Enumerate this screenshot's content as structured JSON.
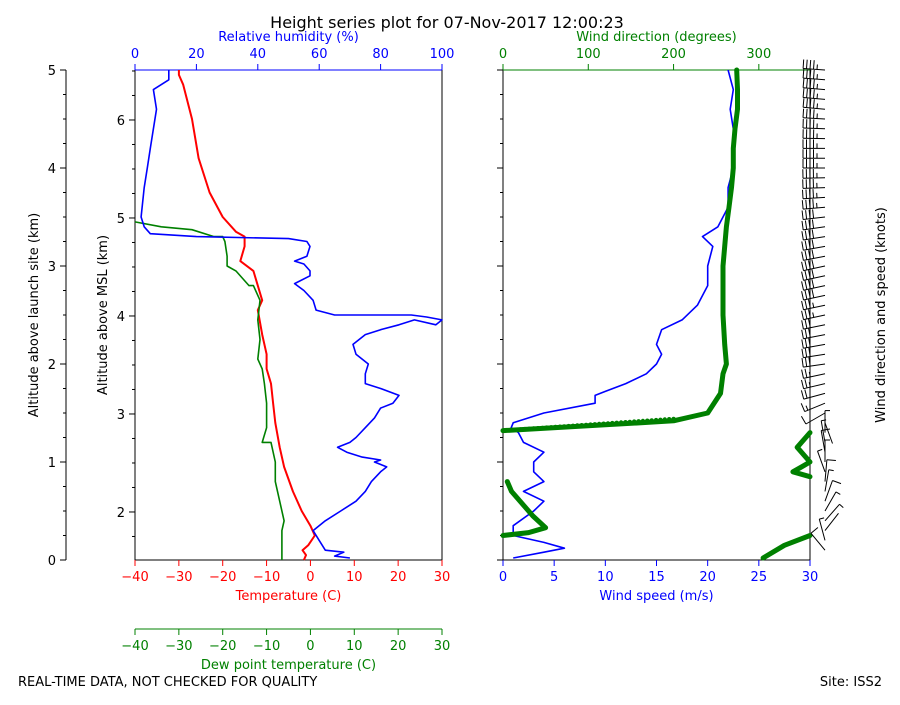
{
  "title": "Height series plot for 07-Nov-2017 12:00:23",
  "footer_left": "REAL-TIME DATA, NOT CHECKED FOR QUALITY",
  "footer_right": "Site: ISS2",
  "colors": {
    "temperature": "#ff0000",
    "dewpoint": "#008000",
    "rh": "#0000ff",
    "wind_speed": "#0000ff",
    "wind_dir": "#008000",
    "barbs": "#000000"
  },
  "chart_data": [
    {
      "type": "line",
      "name": "thermodynamic",
      "axes": {
        "left_outer": {
          "label": "Altitude above launch site (km)",
          "ylim": [
            0,
            5
          ],
          "ticks": [
            0,
            1,
            2,
            3,
            4,
            5
          ]
        },
        "left_inner": {
          "label": "Altitude above MSL (km)",
          "ylim": [
            1.51,
            6.51
          ],
          "ticks": [
            2,
            3,
            4,
            5,
            6
          ]
        },
        "bottom": {
          "label": "Temperature (C)",
          "xlim": [
            -40,
            30
          ],
          "ticks": [
            -40,
            -30,
            -20,
            -10,
            0,
            10,
            20,
            30
          ]
        },
        "bottom2": {
          "label": "Dew point temperature (C)",
          "xlim": [
            -40,
            30
          ],
          "ticks": [
            -40,
            -30,
            -20,
            -10,
            0,
            10,
            20,
            30
          ]
        },
        "top": {
          "label": "Relative humidity (%)",
          "xlim": [
            0,
            100
          ],
          "ticks": [
            0,
            20,
            40,
            60,
            80,
            100
          ]
        }
      },
      "series": [
        {
          "name": "Temperature",
          "axis": "bottom",
          "color": "#ff0000",
          "points": [
            [
              -1.5,
              0
            ],
            [
              -1,
              0.05
            ],
            [
              -1.8,
              0.1
            ],
            [
              -0.5,
              0.15
            ],
            [
              1,
              0.25
            ],
            [
              0,
              0.35
            ],
            [
              -2,
              0.5
            ],
            [
              -4,
              0.7
            ],
            [
              -6,
              0.95
            ],
            [
              -7,
              1.15
            ],
            [
              -8,
              1.4
            ],
            [
              -8.5,
              1.6
            ],
            [
              -9,
              1.8
            ],
            [
              -10,
              1.95
            ],
            [
              -10,
              2.1
            ],
            [
              -11,
              2.3
            ],
            [
              -12,
              2.55
            ],
            [
              -11,
              2.65
            ],
            [
              -13,
              2.95
            ],
            [
              -16,
              3.05
            ],
            [
              -15,
              3.2
            ],
            [
              -15,
              3.3
            ],
            [
              -17,
              3.35
            ],
            [
              -20,
              3.5
            ],
            [
              -23,
              3.75
            ],
            [
              -25.5,
              4.1
            ],
            [
              -27,
              4.5
            ],
            [
              -29,
              4.85
            ],
            [
              -30,
              4.95
            ],
            [
              -30,
              5.0
            ]
          ]
        },
        {
          "name": "Dew point temperature",
          "axis": "bottom2",
          "color": "#008000",
          "points": [
            [
              -6.5,
              0
            ],
            [
              -6.5,
              0.1
            ],
            [
              -6.5,
              0.2
            ],
            [
              -6.5,
              0.3
            ],
            [
              -6,
              0.4
            ],
            [
              -7,
              0.6
            ],
            [
              -8,
              0.8
            ],
            [
              -8,
              1.0
            ],
            [
              -9,
              1.2
            ],
            [
              -11,
              1.2
            ],
            [
              -10,
              1.35
            ],
            [
              -10,
              1.6
            ],
            [
              -10.5,
              1.8
            ],
            [
              -11,
              1.95
            ],
            [
              -12,
              2.05
            ],
            [
              -11.5,
              2.25
            ],
            [
              -12,
              2.45
            ],
            [
              -11.5,
              2.65
            ],
            [
              -13,
              2.8
            ],
            [
              -14,
              2.8
            ],
            [
              -17,
              2.95
            ],
            [
              -19,
              3.0
            ],
            [
              -19,
              3.1
            ],
            [
              -19.5,
              3.25
            ],
            [
              -20,
              3.3
            ],
            [
              -22,
              3.3
            ],
            [
              -27,
              3.37
            ],
            [
              -34,
              3.4
            ],
            [
              -40,
              3.45
            ]
          ]
        },
        {
          "name": "Relative humidity",
          "axis": "top",
          "color": "#0000ff",
          "points": [
            [
              70,
              0.02
            ],
            [
              65,
              0.04
            ],
            [
              68,
              0.08
            ],
            [
              62,
              0.1
            ],
            [
              60,
              0.2
            ],
            [
              58,
              0.3
            ],
            [
              62,
              0.4
            ],
            [
              67,
              0.5
            ],
            [
              72,
              0.6
            ],
            [
              75,
              0.7
            ],
            [
              77,
              0.8
            ],
            [
              80,
              0.9
            ],
            [
              82,
              0.95
            ],
            [
              78,
              1.0
            ],
            [
              80,
              1.02
            ],
            [
              74,
              1.05
            ],
            [
              69,
              1.1
            ],
            [
              66,
              1.15
            ],
            [
              70,
              1.2
            ],
            [
              72,
              1.25
            ],
            [
              75,
              1.35
            ],
            [
              78,
              1.45
            ],
            [
              80,
              1.55
            ],
            [
              84,
              1.6
            ],
            [
              86,
              1.68
            ],
            [
              80,
              1.75
            ],
            [
              75,
              1.8
            ],
            [
              75,
              1.9
            ],
            [
              76,
              2.0
            ],
            [
              72,
              2.1
            ],
            [
              71,
              2.2
            ],
            [
              75,
              2.3
            ],
            [
              80,
              2.35
            ],
            [
              86,
              2.4
            ],
            [
              91,
              2.45
            ],
            [
              98,
              2.4
            ],
            [
              100,
              2.45
            ],
            [
              95,
              2.48
            ],
            [
              90,
              2.5
            ],
            [
              65,
              2.5
            ],
            [
              59,
              2.55
            ],
            [
              58,
              2.65
            ],
            [
              55,
              2.75
            ],
            [
              52,
              2.82
            ],
            [
              57,
              2.9
            ],
            [
              57,
              2.95
            ],
            [
              55,
              3.02
            ],
            [
              52,
              3.05
            ],
            [
              56,
              3.1
            ],
            [
              57,
              3.2
            ],
            [
              56,
              3.25
            ],
            [
              50,
              3.28
            ],
            [
              20,
              3.3
            ],
            [
              5,
              3.33
            ],
            [
              3,
              3.4
            ],
            [
              2,
              3.5
            ],
            [
              3,
              3.8
            ],
            [
              4,
              4.0
            ],
            [
              5,
              4.2
            ],
            [
              6,
              4.4
            ],
            [
              7,
              4.6
            ],
            [
              6,
              4.8
            ],
            [
              11,
              4.9
            ],
            [
              11,
              5.0
            ]
          ]
        }
      ]
    },
    {
      "type": "line",
      "name": "wind",
      "axes": {
        "bottom": {
          "label": "Wind speed (m/s)",
          "xlim": [
            0,
            30
          ],
          "ticks": [
            0,
            5,
            10,
            15,
            20,
            25,
            30
          ]
        },
        "top": {
          "label": "Wind direction (degrees)",
          "xlim": [
            0,
            360
          ],
          "ticks": [
            0,
            100,
            200,
            300
          ]
        },
        "right": {
          "label": "Wind direction and speed (knots)"
        }
      },
      "series": [
        {
          "name": "Wind speed",
          "axis": "bottom",
          "color": "#0000ff",
          "points": [
            [
              1,
              0.02
            ],
            [
              4,
              0.08
            ],
            [
              6,
              0.12
            ],
            [
              4,
              0.18
            ],
            [
              1,
              0.25
            ],
            [
              1,
              0.35
            ],
            [
              3,
              0.5
            ],
            [
              4,
              0.6
            ],
            [
              2,
              0.7
            ],
            [
              4,
              0.8
            ],
            [
              3,
              0.9
            ],
            [
              3,
              1.0
            ],
            [
              4,
              1.1
            ],
            [
              2,
              1.2
            ],
            [
              1.5,
              1.3
            ],
            [
              0.8,
              1.35
            ],
            [
              1,
              1.4
            ],
            [
              4,
              1.5
            ],
            [
              9,
              1.6
            ],
            [
              9,
              1.68
            ],
            [
              10,
              1.72
            ],
            [
              12,
              1.8
            ],
            [
              14,
              1.9
            ],
            [
              15,
              2.0
            ],
            [
              15.5,
              2.1
            ],
            [
              15,
              2.2
            ],
            [
              15.5,
              2.35
            ],
            [
              17.5,
              2.45
            ],
            [
              19,
              2.6
            ],
            [
              20,
              2.8
            ],
            [
              20,
              3.0
            ],
            [
              20.5,
              3.2
            ],
            [
              19.5,
              3.3
            ],
            [
              21,
              3.4
            ],
            [
              22,
              3.6
            ],
            [
              22,
              3.8
            ],
            [
              22.5,
              4.0
            ],
            [
              22.5,
              4.2
            ],
            [
              22.5,
              4.4
            ],
            [
              22.2,
              4.6
            ],
            [
              22.5,
              4.8
            ],
            [
              22,
              5.0
            ]
          ]
        },
        {
          "name": "Wind direction",
          "axis": "top",
          "color": "#008000",
          "points": [
            [
              360,
              0.25
            ],
            [
              330,
              0.15
            ],
            [
              305,
              0.02
            ],
            [
              0,
              0.25
            ],
            [
              30,
              0.28
            ],
            [
              50,
              0.33
            ],
            [
              35,
              0.45
            ],
            [
              20,
              0.6
            ],
            [
              10,
              0.7
            ],
            [
              5,
              0.8
            ],
            [
              360,
              0.85
            ],
            [
              340,
              0.9
            ],
            [
              350,
              0.95
            ],
            [
              360,
              1.0
            ],
            [
              345,
              1.15
            ],
            [
              360,
              1.3
            ],
            [
              0,
              1.32
            ],
            [
              120,
              1.38
            ],
            [
              200,
              1.42
            ],
            [
              240,
              1.5
            ],
            [
              255,
              1.7
            ],
            [
              258,
              1.9
            ],
            [
              262,
              2.0
            ],
            [
              260,
              2.2
            ],
            [
              258,
              2.5
            ],
            [
              258,
              2.7
            ],
            [
              258,
              3.0
            ],
            [
              260,
              3.2
            ],
            [
              262,
              3.4
            ],
            [
              265,
              3.6
            ],
            [
              268,
              3.8
            ],
            [
              270,
              4.0
            ],
            [
              270,
              4.2
            ],
            [
              272,
              4.4
            ],
            [
              275,
              4.6
            ],
            [
              275,
              4.8
            ],
            [
              274,
              5.0
            ]
          ]
        }
      ]
    }
  ]
}
